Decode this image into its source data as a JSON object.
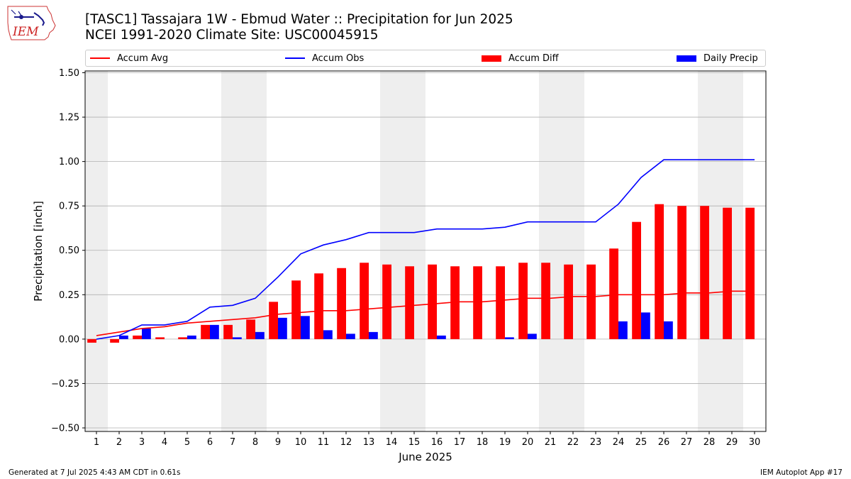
{
  "header": {
    "title_line1": "[TASC1] Tassajara 1W - Ebmud Water :: Precipitation for Jun 2025",
    "title_line2": "NCEI 1991-2020 Climate Site: USC00045915",
    "logo_text": "IEM"
  },
  "legend": {
    "accum_avg": "Accum Avg",
    "accum_obs": "Accum Obs",
    "accum_diff": "Accum Diff",
    "daily_precip": "Daily Precip"
  },
  "footer": {
    "generated": "Generated at 7 Jul 2025 4:43 AM CDT in 0.61s",
    "app": "IEM Autoplot App #17"
  },
  "colors": {
    "accum_avg": "#ff0000",
    "accum_obs": "#0000ff",
    "accum_diff": "#ff0000",
    "daily_precip": "#0000ff",
    "weekend_shade": "#eeeeee",
    "grid": "#b0b0b0"
  },
  "chart_data": {
    "type": "bar",
    "title": "[TASC1] Tassajara 1W - Ebmud Water :: Precipitation for Jun 2025",
    "subtitle": "NCEI 1991-2020 Climate Site: USC00045915",
    "xlabel": "June 2025",
    "ylabel": "Precipitation [inch]",
    "ylim": [
      -0.52,
      1.51
    ],
    "yticks": [
      -0.5,
      -0.25,
      0.0,
      0.25,
      0.5,
      0.75,
      1.0,
      1.25,
      1.5
    ],
    "ytick_labels": [
      "−0.50",
      "−0.25",
      "0.00",
      "0.25",
      "0.50",
      "0.75",
      "1.00",
      "1.25",
      "1.50"
    ],
    "x": [
      1,
      2,
      3,
      4,
      5,
      6,
      7,
      8,
      9,
      10,
      11,
      12,
      13,
      14,
      15,
      16,
      17,
      18,
      19,
      20,
      21,
      22,
      23,
      24,
      25,
      26,
      27,
      28,
      29,
      30
    ],
    "shaded_days": [
      1,
      7,
      8,
      14,
      15,
      21,
      22,
      28,
      29
    ],
    "grid": "horizontal",
    "legend_position": "top",
    "series": [
      {
        "name": "Accum Avg",
        "kind": "line",
        "values": [
          0.02,
          0.04,
          0.06,
          0.07,
          0.09,
          0.1,
          0.11,
          0.12,
          0.14,
          0.15,
          0.16,
          0.16,
          0.17,
          0.18,
          0.19,
          0.2,
          0.21,
          0.21,
          0.22,
          0.23,
          0.23,
          0.24,
          0.24,
          0.25,
          0.25,
          0.25,
          0.26,
          0.26,
          0.27,
          0.27
        ]
      },
      {
        "name": "Accum Obs",
        "kind": "line",
        "values": [
          0.0,
          0.02,
          0.08,
          0.08,
          0.1,
          0.18,
          0.19,
          0.23,
          0.35,
          0.48,
          0.53,
          0.56,
          0.6,
          0.6,
          0.6,
          0.62,
          0.62,
          0.62,
          0.63,
          0.66,
          0.66,
          0.66,
          0.66,
          0.76,
          0.91,
          1.01,
          1.01,
          1.01,
          1.01,
          1.01
        ]
      },
      {
        "name": "Accum Diff",
        "kind": "bar",
        "values": [
          -0.02,
          -0.02,
          0.02,
          0.01,
          0.01,
          0.08,
          0.08,
          0.11,
          0.21,
          0.33,
          0.37,
          0.4,
          0.43,
          0.42,
          0.41,
          0.42,
          0.41,
          0.41,
          0.41,
          0.43,
          0.43,
          0.42,
          0.42,
          0.51,
          0.66,
          0.76,
          0.75,
          0.75,
          0.74,
          0.74
        ]
      },
      {
        "name": "Daily Precip",
        "kind": "bar",
        "values": [
          0.0,
          0.02,
          0.06,
          0.0,
          0.02,
          0.08,
          0.01,
          0.04,
          0.12,
          0.13,
          0.05,
          0.03,
          0.04,
          0.0,
          0.0,
          0.02,
          0.0,
          0.0,
          0.01,
          0.03,
          0.0,
          0.0,
          0.0,
          0.1,
          0.15,
          0.1,
          0.0,
          0.0,
          0.0,
          0.0
        ]
      }
    ]
  }
}
